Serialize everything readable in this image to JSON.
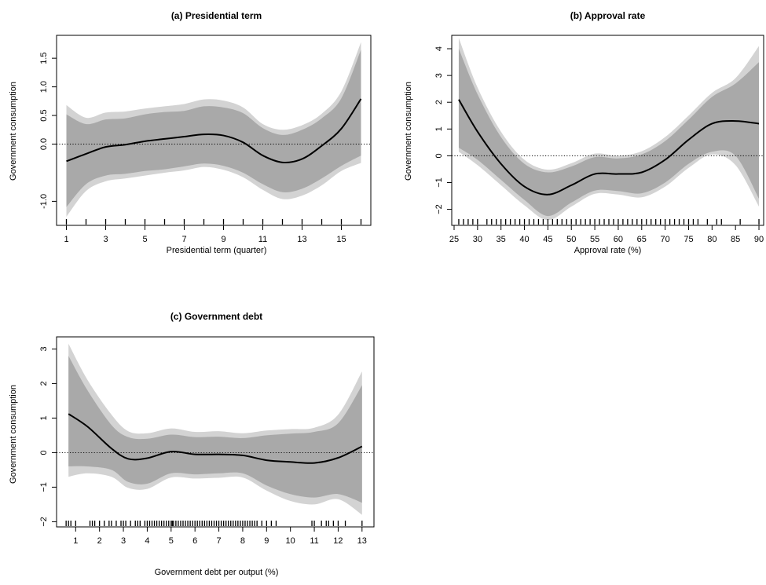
{
  "figure": {
    "panel_order": [
      "a",
      "b",
      "c"
    ]
  },
  "chart_data": [
    {
      "id": "a",
      "type": "line",
      "title": "(a) Presidential term",
      "xlabel": "Presidential term (quarter)",
      "ylabel": "Government consumption",
      "xlim": [
        0.5,
        16.5
      ],
      "ylim": [
        -1.42,
        1.9
      ],
      "x_ticks": [
        1,
        3,
        5,
        7,
        9,
        11,
        13,
        15
      ],
      "y_ticks": [
        -1.0,
        0.0,
        0.5,
        1.0,
        1.5
      ],
      "y_tick_labels": [
        "-1.0",
        "0.0",
        "0.5",
        "1.0",
        "1.5"
      ],
      "reference_line_y": 0,
      "series": [
        {
          "role": "estimate",
          "x": [
            1,
            2,
            3,
            4,
            5,
            6,
            7,
            8,
            9,
            10,
            11,
            12,
            13,
            14,
            15,
            16
          ],
          "y": [
            -0.3,
            -0.17,
            -0.05,
            -0.01,
            0.05,
            0.09,
            0.13,
            0.17,
            0.15,
            0.03,
            -0.2,
            -0.32,
            -0.26,
            -0.03,
            0.27,
            0.79
          ]
        },
        {
          "role": "inner_band",
          "x": [
            1,
            2,
            3,
            4,
            5,
            6,
            7,
            8,
            9,
            10,
            11,
            12,
            13,
            14,
            15,
            16
          ],
          "lower": [
            -1.1,
            -0.7,
            -0.55,
            -0.52,
            -0.47,
            -0.44,
            -0.39,
            -0.34,
            -0.38,
            -0.5,
            -0.7,
            -0.84,
            -0.78,
            -0.6,
            -0.38,
            -0.2
          ],
          "upper": [
            0.52,
            0.35,
            0.43,
            0.45,
            0.52,
            0.56,
            0.58,
            0.66,
            0.64,
            0.54,
            0.28,
            0.16,
            0.25,
            0.45,
            0.8,
            1.65
          ]
        },
        {
          "role": "outer_band",
          "x": [
            1,
            2,
            3,
            4,
            5,
            6,
            7,
            8,
            9,
            10,
            11,
            12,
            13,
            14,
            15,
            16
          ],
          "lower": [
            -1.27,
            -0.82,
            -0.65,
            -0.6,
            -0.55,
            -0.5,
            -0.46,
            -0.4,
            -0.45,
            -0.58,
            -0.8,
            -0.96,
            -0.9,
            -0.72,
            -0.47,
            -0.33
          ],
          "upper": [
            0.68,
            0.46,
            0.55,
            0.57,
            0.62,
            0.66,
            0.7,
            0.78,
            0.76,
            0.64,
            0.35,
            0.25,
            0.33,
            0.53,
            0.92,
            1.78
          ]
        }
      ],
      "rug": [
        1,
        2,
        3,
        4,
        5,
        6,
        7,
        8,
        9,
        10,
        11,
        12,
        13,
        14,
        15,
        16
      ]
    },
    {
      "id": "b",
      "type": "line",
      "title": "(b) Approval rate",
      "xlabel": "Approval rate (%)",
      "ylabel": "Government consumption",
      "xlim": [
        24.5,
        91
      ],
      "ylim": [
        -2.6,
        4.5
      ],
      "x_ticks": [
        25,
        30,
        35,
        40,
        45,
        50,
        55,
        60,
        65,
        70,
        75,
        80,
        85,
        90
      ],
      "y_ticks": [
        -2,
        -1,
        0,
        1,
        2,
        3,
        4
      ],
      "y_tick_labels": [
        "−2",
        "−1",
        "0",
        "1",
        "2",
        "3",
        "4"
      ],
      "reference_line_y": 0,
      "series": [
        {
          "role": "estimate",
          "x": [
            26,
            30,
            35,
            40,
            45,
            50,
            55,
            60,
            65,
            70,
            75,
            80,
            85,
            90
          ],
          "y": [
            2.1,
            0.9,
            -0.3,
            -1.15,
            -1.45,
            -1.1,
            -0.68,
            -0.68,
            -0.62,
            -0.15,
            0.6,
            1.2,
            1.3,
            1.2
          ]
        },
        {
          "role": "inner_band",
          "x": [
            26,
            30,
            35,
            40,
            45,
            50,
            55,
            60,
            65,
            70,
            75,
            80,
            85,
            90
          ],
          "lower": [
            0.3,
            -0.15,
            -0.9,
            -1.65,
            -2.25,
            -1.75,
            -1.3,
            -1.32,
            -1.4,
            -1.0,
            -0.3,
            0.15,
            0.0,
            -1.6
          ],
          "upper": [
            4.0,
            2.3,
            0.7,
            -0.3,
            -0.62,
            -0.4,
            -0.05,
            -0.1,
            0.05,
            0.55,
            1.35,
            2.2,
            2.7,
            3.5
          ]
        },
        {
          "role": "outer_band",
          "x": [
            26,
            30,
            35,
            40,
            45,
            50,
            55,
            60,
            65,
            70,
            75,
            80,
            85,
            90
          ],
          "lower": [
            0.15,
            -0.35,
            -1.1,
            -1.85,
            -2.4,
            -1.9,
            -1.42,
            -1.45,
            -1.55,
            -1.15,
            -0.45,
            0.05,
            -0.35,
            -1.9
          ],
          "upper": [
            4.4,
            2.55,
            0.9,
            -0.15,
            -0.52,
            -0.28,
            0.08,
            0.0,
            0.17,
            0.7,
            1.5,
            2.35,
            2.9,
            4.1
          ]
        }
      ],
      "rug": [
        26,
        27,
        28,
        29,
        30,
        32,
        33,
        34,
        35,
        36,
        37,
        38,
        39,
        40,
        41,
        42,
        43,
        44,
        45,
        46,
        47,
        48,
        49,
        50,
        51,
        52,
        53,
        54,
        55,
        56,
        57,
        58,
        59,
        60,
        61,
        62,
        63,
        64,
        65,
        66,
        67,
        68,
        69,
        70,
        71,
        72,
        73,
        74,
        75,
        76,
        77,
        79,
        81,
        82,
        86,
        90
      ]
    },
    {
      "id": "c",
      "type": "line",
      "title": "(c) Government debt",
      "xlabel": "Government debt per output (%)",
      "ylabel": "Government consumption",
      "xlim": [
        0.2,
        13.5
      ],
      "ylim": [
        -2.15,
        3.35
      ],
      "x_ticks": [
        1,
        2,
        3,
        4,
        5,
        6,
        7,
        8,
        9,
        10,
        11,
        12,
        13
      ],
      "y_ticks": [
        -2,
        -1,
        0,
        1,
        2,
        3
      ],
      "y_tick_labels": [
        "−2",
        "−1",
        "0",
        "1",
        "2",
        "3"
      ],
      "reference_line_y": 0,
      "series": [
        {
          "role": "estimate",
          "x": [
            0.7,
            1.5,
            2.5,
            3.2,
            4.0,
            5.0,
            6.0,
            7.0,
            8.0,
            9.0,
            10.0,
            11.0,
            12.0,
            13.0
          ],
          "y": [
            1.12,
            0.75,
            0.12,
            -0.18,
            -0.16,
            0.03,
            -0.05,
            -0.05,
            -0.08,
            -0.22,
            -0.27,
            -0.3,
            -0.15,
            0.18
          ]
        },
        {
          "role": "inner_band",
          "x": [
            0.7,
            1.5,
            2.5,
            3.2,
            4.0,
            5.0,
            6.0,
            7.0,
            8.0,
            9.0,
            10.0,
            11.0,
            12.0,
            13.0
          ],
          "lower": [
            -0.4,
            -0.4,
            -0.5,
            -0.85,
            -0.9,
            -0.6,
            -0.63,
            -0.6,
            -0.6,
            -0.95,
            -1.2,
            -1.3,
            -1.2,
            -1.45
          ],
          "upper": [
            2.8,
            1.8,
            0.8,
            0.45,
            0.4,
            0.52,
            0.45,
            0.46,
            0.42,
            0.5,
            0.55,
            0.6,
            0.85,
            1.95
          ]
        },
        {
          "role": "outer_band",
          "x": [
            0.7,
            1.5,
            2.5,
            3.2,
            4.0,
            5.0,
            6.0,
            7.0,
            8.0,
            9.0,
            10.0,
            11.0,
            12.0,
            13.0
          ],
          "lower": [
            -0.7,
            -0.6,
            -0.7,
            -1.02,
            -1.05,
            -0.72,
            -0.75,
            -0.73,
            -0.72,
            -1.1,
            -1.4,
            -1.5,
            -1.35,
            -1.8
          ],
          "upper": [
            3.15,
            2.1,
            1.1,
            0.62,
            0.56,
            0.7,
            0.6,
            0.62,
            0.56,
            0.64,
            0.68,
            0.72,
            1.1,
            2.35
          ]
        }
      ],
      "rug": [
        0.6,
        0.7,
        0.8,
        1.0,
        1.6,
        1.7,
        1.8,
        2.0,
        2.2,
        2.4,
        2.5,
        2.7,
        2.9,
        3.0,
        3.1,
        3.3,
        3.5,
        3.6,
        3.7,
        3.9,
        4.0,
        4.1,
        4.2,
        4.3,
        4.4,
        4.5,
        4.6,
        4.7,
        4.8,
        4.9,
        5.0,
        5.05,
        5.1,
        5.2,
        5.3,
        5.4,
        5.5,
        5.6,
        5.7,
        5.8,
        5.9,
        6.0,
        6.1,
        6.2,
        6.3,
        6.4,
        6.5,
        6.6,
        6.7,
        6.8,
        6.9,
        7.0,
        7.1,
        7.2,
        7.3,
        7.4,
        7.5,
        7.6,
        7.7,
        7.8,
        7.9,
        8.0,
        8.1,
        8.2,
        8.3,
        8.4,
        8.5,
        8.6,
        8.8,
        9.0,
        9.2,
        9.4,
        10.9,
        11.0,
        11.3,
        11.5,
        11.6,
        11.8,
        12.0,
        12.3,
        13.0
      ]
    }
  ],
  "style": {
    "outer_band_color": "#d3d3d3",
    "inner_band_color": "#a9a9a9",
    "line_color": "#000000",
    "reference_line_color": "#000000"
  }
}
